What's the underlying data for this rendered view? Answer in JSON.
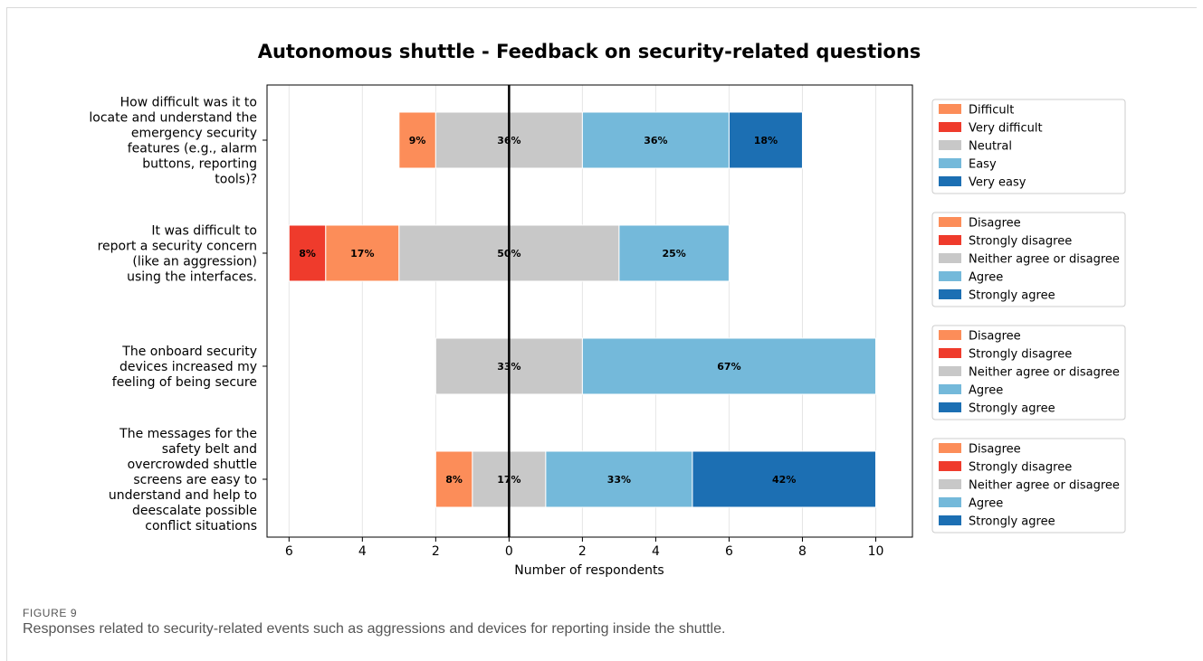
{
  "chart_data": {
    "type": "bar",
    "orientation": "horizontal-diverging",
    "title": "Autonomous shuttle - Feedback on security-related questions",
    "xlabel": "Number of respondents",
    "ylabel": "",
    "xlim": [
      -6.6,
      11.0
    ],
    "xticks": [
      -6,
      -4,
      -2,
      0,
      2,
      4,
      6,
      8,
      10
    ],
    "xtick_labels": [
      "6",
      "4",
      "2",
      "0",
      "2",
      "4",
      "6",
      "8",
      "10"
    ],
    "grid": "vertical",
    "legend_position": "right",
    "colors": {
      "disagree": "#fc8d59",
      "strongly_disagree": "#ef3b2c",
      "neutral": "#c8c8c8",
      "agree": "#74b9da",
      "strongly_agree": "#1c6fb3"
    },
    "questions": [
      {
        "label_lines": [
          "How difficult was it to",
          "locate and understand the",
          "emergency security",
          "features (e.g., alarm",
          "buttons, reporting",
          "tools)?"
        ],
        "segments": [
          {
            "category": "disagree",
            "start": -3,
            "end": -2,
            "label": "9%"
          },
          {
            "category": "neutral",
            "start": -2,
            "end": 2,
            "label": "36%"
          },
          {
            "category": "agree",
            "start": 2,
            "end": 6,
            "label": "36%"
          },
          {
            "category": "strongly_agree",
            "start": 6,
            "end": 8,
            "label": "18%"
          }
        ],
        "legend": [
          "Difficult",
          "Very difficult",
          "Neutral",
          "Easy",
          "Very easy"
        ]
      },
      {
        "label_lines": [
          "It was difficult to",
          "report a security concern",
          "(like an aggression)",
          "using the interfaces."
        ],
        "segments": [
          {
            "category": "strongly_disagree",
            "start": -6,
            "end": -5,
            "label": "8%"
          },
          {
            "category": "disagree",
            "start": -5,
            "end": -3,
            "label": "17%"
          },
          {
            "category": "neutral",
            "start": -3,
            "end": 3,
            "label": "50%"
          },
          {
            "category": "agree",
            "start": 3,
            "end": 6,
            "label": "25%"
          }
        ],
        "legend": [
          "Disagree",
          "Strongly disagree",
          "Neither agree or disagree",
          "Agree",
          "Strongly agree"
        ]
      },
      {
        "label_lines": [
          "The onboard security",
          "devices increased my",
          "feeling of being secure"
        ],
        "segments": [
          {
            "category": "neutral",
            "start": -2,
            "end": 2,
            "label": "33%"
          },
          {
            "category": "agree",
            "start": 2,
            "end": 10,
            "label": "67%"
          }
        ],
        "legend": [
          "Disagree",
          "Strongly disagree",
          "Neither agree or disagree",
          "Agree",
          "Strongly agree"
        ]
      },
      {
        "label_lines": [
          "The messages for the",
          "safety belt and",
          "overcrowded shuttle",
          "screens are easy to",
          "understand and help to",
          "deescalate possible",
          "conflict situations"
        ],
        "segments": [
          {
            "category": "disagree",
            "start": -2,
            "end": -1,
            "label": "8%"
          },
          {
            "category": "neutral",
            "start": -1,
            "end": 1,
            "label": "17%"
          },
          {
            "category": "agree",
            "start": 1,
            "end": 5,
            "label": "33%"
          },
          {
            "category": "strongly_agree",
            "start": 5,
            "end": 10,
            "label": "42%"
          }
        ],
        "legend": [
          "Disagree",
          "Strongly disagree",
          "Neither agree or disagree",
          "Agree",
          "Strongly agree"
        ]
      }
    ],
    "legend_order": [
      "disagree",
      "strongly_disagree",
      "neutral",
      "agree",
      "strongly_agree"
    ]
  },
  "figure": {
    "label": "FIGURE 9",
    "caption": "Responses related to security-related events such as aggressions and devices for reporting inside the shuttle."
  }
}
